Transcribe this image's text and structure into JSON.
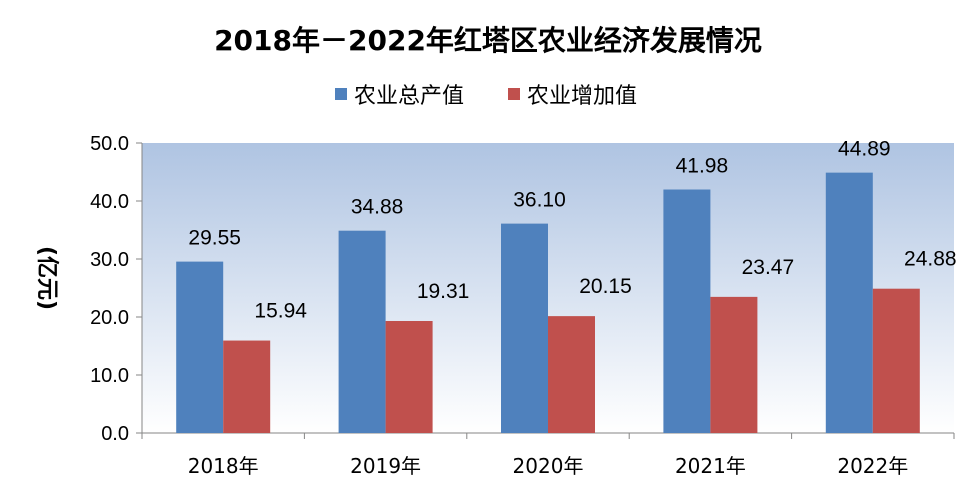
{
  "chart_data": {
    "type": "bar",
    "title": "2018年－2022年红塔区农业经济发展情况",
    "xlabel": "",
    "ylabel": "(亿元)",
    "ylim": [
      0,
      50
    ],
    "yticks": [
      "0.0",
      "10.0",
      "20.0",
      "30.0",
      "40.0",
      "50.0"
    ],
    "grid": false,
    "legend_position": "top",
    "categories": [
      "2018年",
      "2019年",
      "2020年",
      "2021年",
      "2022年"
    ],
    "series": [
      {
        "name": "农业总产值",
        "color": "#4F81BD",
        "values": [
          29.55,
          34.88,
          36.1,
          41.98,
          44.89
        ],
        "labels": [
          "29.55",
          "34.88",
          "36.10",
          "41.98",
          "44.89"
        ]
      },
      {
        "name": "农业增加值",
        "color": "#C0504D",
        "values": [
          15.94,
          19.31,
          20.15,
          23.47,
          24.88
        ],
        "labels": [
          "15.94",
          "19.31",
          "20.15",
          "23.47",
          "24.88"
        ]
      }
    ]
  }
}
